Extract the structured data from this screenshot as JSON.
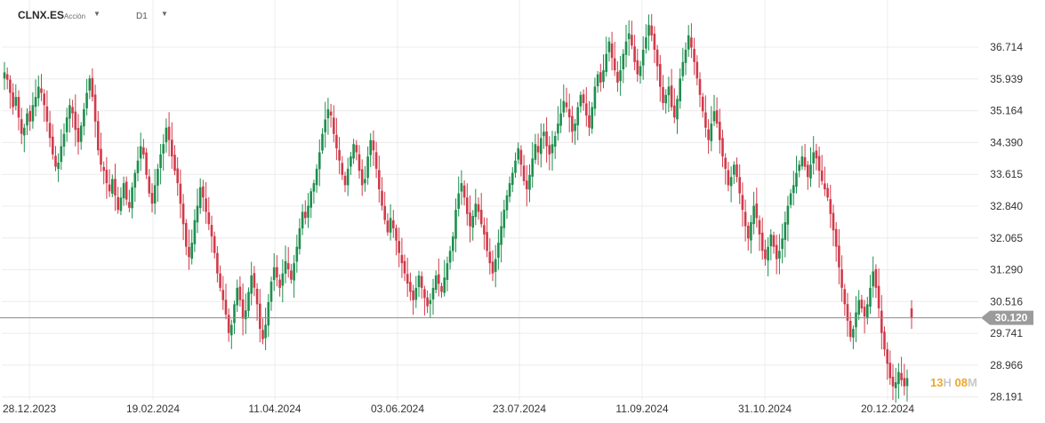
{
  "header": {
    "symbol": "CLNX.ES",
    "asset_type": "Acción",
    "timeframe": "D1"
  },
  "countdown": {
    "hours": "13",
    "h_unit": "H",
    "minutes": "08",
    "m_unit": "M"
  },
  "colors": {
    "up": "#1e8f4e",
    "down": "#d23a4a",
    "price_line": "#8a8a8a",
    "price_label_bg": "#9b9b9b",
    "grid": "#ececec",
    "axis_text": "#333333"
  },
  "chart_data": {
    "type": "candlestick",
    "ylim": [
      27.95,
      37.55
    ],
    "y_ticks": [
      "36.714",
      "35.939",
      "35.164",
      "34.390",
      "33.615",
      "32.840",
      "32.065",
      "31.290",
      "30.516",
      "29.741",
      "28.966",
      "28.191"
    ],
    "x_tick_labels": [
      "28.12.2023",
      "19.02.2024",
      "11.04.2024",
      "03.06.2024",
      "23.07.2024",
      "11.09.2024",
      "31.10.2024",
      "20.12.2024"
    ],
    "current_price": "30.120",
    "current_price_value": 30.12,
    "grid": true,
    "closes": [
      36.1,
      35.92,
      35.6,
      35.25,
      35.5,
      35.0,
      34.6,
      34.75,
      35.1,
      34.9,
      35.3,
      35.5,
      35.75,
      35.6,
      35.3,
      34.9,
      34.5,
      34.1,
      33.8,
      33.9,
      34.3,
      34.6,
      35.0,
      35.3,
      35.1,
      34.7,
      34.4,
      34.8,
      35.2,
      35.6,
      35.95,
      35.5,
      34.9,
      34.2,
      33.85,
      33.7,
      33.4,
      33.2,
      33.5,
      33.1,
      32.75,
      33.05,
      33.4,
      33.0,
      32.8,
      33.3,
      33.65,
      33.95,
      34.3,
      34.1,
      33.6,
      33.15,
      32.9,
      33.35,
      33.75,
      34.1,
      34.35,
      34.75,
      34.45,
      34.05,
      33.7,
      33.4,
      32.9,
      32.4,
      31.85,
      31.6,
      31.95,
      32.5,
      32.85,
      33.3,
      33.05,
      32.7,
      32.4,
      32.1,
      31.7,
      31.2,
      30.85,
      30.55,
      30.2,
      29.75,
      29.95,
      30.45,
      30.85,
      30.55,
      30.1,
      30.3,
      30.75,
      31.15,
      30.85,
      30.45,
      29.85,
      29.6,
      29.95,
      30.5,
      31.0,
      31.35,
      31.1,
      30.85,
      31.2,
      31.5,
      31.3,
      31.05,
      31.45,
      31.85,
      32.3,
      32.7,
      32.55,
      32.85,
      33.2,
      33.4,
      33.75,
      34.15,
      34.6,
      34.95,
      35.2,
      35.05,
      34.6,
      34.25,
      33.95,
      33.6,
      33.35,
      33.75,
      34.05,
      34.35,
      34.15,
      33.7,
      33.35,
      33.5,
      34.05,
      34.45,
      34.2,
      33.75,
      33.25,
      32.85,
      32.5,
      32.2,
      32.55,
      32.3,
      32.0,
      31.7,
      31.45,
      31.2,
      30.95,
      30.75,
      30.55,
      30.85,
      31.15,
      30.85,
      30.6,
      30.4,
      30.55,
      30.85,
      31.15,
      30.95,
      30.75,
      31.1,
      31.45,
      31.75,
      32.1,
      32.75,
      33.15,
      33.4,
      33.05,
      32.65,
      32.35,
      32.6,
      32.9,
      32.7,
      32.4,
      32.15,
      31.75,
      31.45,
      31.2,
      31.55,
      31.95,
      32.35,
      32.75,
      33.1,
      33.4,
      33.65,
      33.95,
      34.25,
      33.85,
      33.45,
      33.25,
      33.6,
      34.0,
      34.35,
      34.15,
      34.5,
      34.65,
      34.3,
      34.1,
      34.35,
      34.55,
      34.85,
      35.1,
      35.4,
      35.25,
      35.0,
      34.65,
      34.85,
      35.25,
      35.55,
      35.35,
      35.05,
      34.75,
      35.25,
      35.75,
      36.05,
      35.85,
      36.15,
      36.55,
      36.85,
      36.45,
      36.15,
      35.85,
      36.15,
      36.55,
      36.85,
      37.05,
      36.75,
      36.35,
      36.05,
      36.25,
      36.65,
      36.95,
      37.25,
      37.0,
      36.65,
      36.25,
      35.75,
      35.35,
      35.55,
      35.75,
      35.25,
      35.0,
      35.45,
      35.95,
      36.35,
      36.65,
      37.0,
      36.7,
      36.35,
      35.95,
      35.55,
      35.15,
      34.75,
      34.45,
      34.85,
      35.15,
      34.85,
      34.45,
      34.05,
      33.75,
      33.35,
      33.55,
      33.85,
      33.55,
      33.15,
      32.75,
      32.35,
      32.05,
      32.45,
      32.85,
      32.55,
      32.15,
      31.75,
      31.55,
      31.85,
      32.15,
      31.85,
      31.55,
      31.75,
      32.05,
      32.45,
      32.85,
      33.15,
      33.35,
      33.65,
      33.85,
      34.05,
      33.8,
      33.55,
      33.85,
      34.15,
      34.0,
      33.7,
      33.45,
      33.25,
      33.05,
      32.65,
      32.25,
      31.85,
      31.35,
      30.85,
      30.45,
      30.05,
      29.65,
      29.85,
      30.25,
      30.55,
      30.35,
      30.15,
      30.45,
      30.85,
      31.25,
      30.85,
      30.35,
      29.75,
      29.35,
      29.0,
      28.65,
      28.45,
      28.55,
      28.8,
      28.6,
      28.45,
      28.65
    ],
    "gaps_after": [],
    "last_open": 30.35
  }
}
